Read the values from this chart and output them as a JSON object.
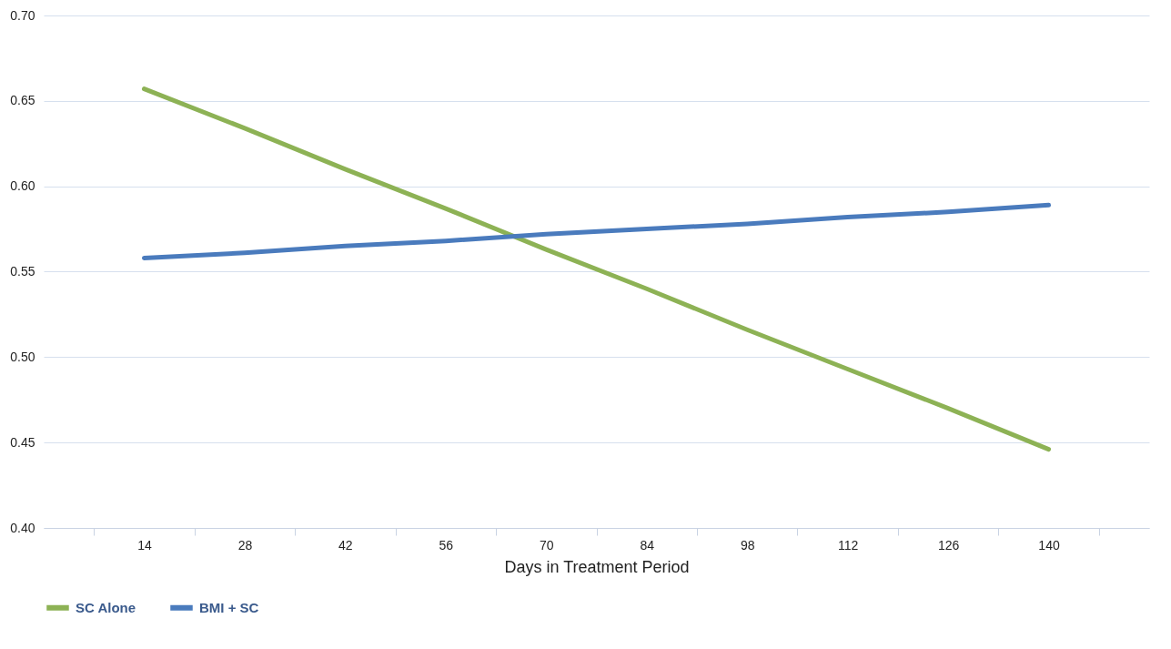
{
  "chart_data": {
    "type": "line",
    "xlabel": "Days in Treatment Period",
    "categories": [
      "14",
      "28",
      "42",
      "56",
      "70",
      "84",
      "98",
      "112",
      "126",
      "140"
    ],
    "series": [
      {
        "name": "SC Alone",
        "color": "#8db255",
        "values": [
          0.657,
          0.634,
          0.61,
          0.587,
          0.563,
          0.54,
          0.516,
          0.493,
          0.47,
          0.446
        ]
      },
      {
        "name": "BMI + SC",
        "color": "#4a7bbd",
        "values": [
          0.558,
          0.561,
          0.565,
          0.568,
          0.572,
          0.575,
          0.578,
          0.582,
          0.585,
          0.589
        ]
      }
    ],
    "ylim": [
      0.4,
      0.7
    ],
    "yticks": [
      {
        "value": 0.4,
        "label": "0.40"
      },
      {
        "value": 0.45,
        "label": "0.45"
      },
      {
        "value": 0.5,
        "label": "0.50"
      },
      {
        "value": 0.55,
        "label": "0.55"
      },
      {
        "value": 0.6,
        "label": "0.60"
      },
      {
        "value": 0.65,
        "label": "0.65"
      },
      {
        "value": 0.7,
        "label": "0.70"
      }
    ],
    "grid": "y",
    "legend": "bottom",
    "marker": "none",
    "line_style": "solid"
  }
}
